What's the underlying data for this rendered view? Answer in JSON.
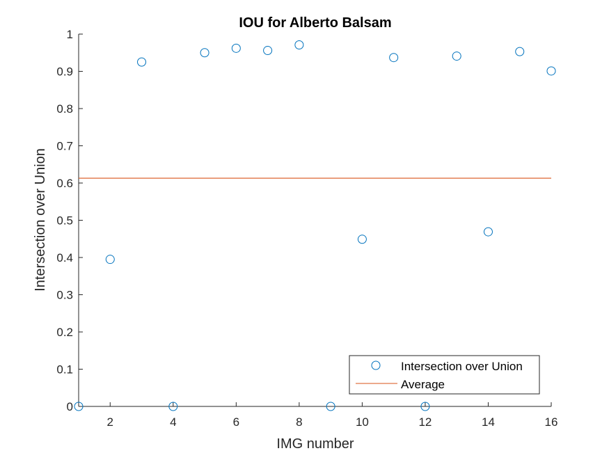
{
  "chart_data": {
    "type": "scatter",
    "title": "IOU for Alberto Balsam",
    "xlabel": "IMG number",
    "ylabel": "Intersection over Union",
    "xlim": [
      1,
      16
    ],
    "ylim": [
      0,
      1
    ],
    "xticks": [
      2,
      4,
      6,
      8,
      10,
      12,
      14,
      16
    ],
    "yticks": [
      0,
      0.1,
      0.2,
      0.3,
      0.4,
      0.5,
      0.6,
      0.7,
      0.8,
      0.9,
      1
    ],
    "ytick_labels": [
      "0",
      "0.1",
      "0.2",
      "0.3",
      "0.4",
      "0.5",
      "0.6",
      "0.7",
      "0.8",
      "0.9",
      "1"
    ],
    "grid": false,
    "legend_position": "bottom-right",
    "series": [
      {
        "name": "Intersection over Union",
        "marker": "circle",
        "color": "#0072BD",
        "x": [
          1,
          2,
          3,
          4,
          5,
          6,
          7,
          8,
          9,
          10,
          11,
          12,
          13,
          14,
          15,
          16
        ],
        "y": [
          0,
          0.395,
          0.925,
          0,
          0.95,
          0.962,
          0.956,
          0.971,
          0,
          0.449,
          0.937,
          0,
          0.941,
          0.469,
          0.953,
          0.901
        ]
      },
      {
        "name": "Average",
        "line": "solid",
        "color": "#D95319",
        "x": [
          1,
          16
        ],
        "y": [
          0.613,
          0.613
        ]
      }
    ]
  }
}
